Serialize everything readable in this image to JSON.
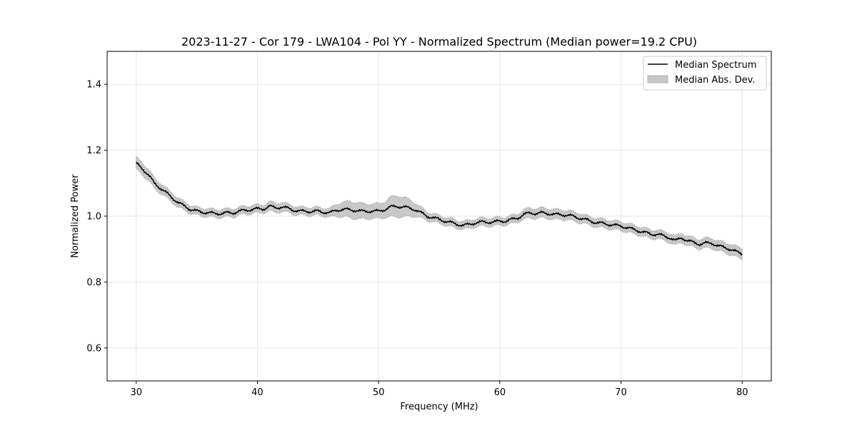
{
  "chart_data": {
    "type": "line",
    "title": "2023-11-27 - Cor 179 - LWA104 - Pol YY - Normalized Spectrum (Median power=19.2 CPU)",
    "xlabel": "Frequency (MHz)",
    "ylabel": "Normalized Power",
    "xlim": [
      27.6,
      82.4
    ],
    "ylim": [
      0.5,
      1.5
    ],
    "xticks": [
      30,
      40,
      50,
      60,
      70,
      80
    ],
    "yticks": [
      0.6,
      0.8,
      1.0,
      1.2,
      1.4
    ],
    "xtick_labels": [
      "30",
      "40",
      "50",
      "60",
      "70",
      "80"
    ],
    "ytick_labels": [
      "0.6",
      "0.8",
      "1.0",
      "1.2",
      "1.4"
    ],
    "grid": true,
    "legend_position": "top-right",
    "legend": [
      "Median Spectrum",
      "Median Abs. Dev."
    ],
    "series": [
      {
        "name": "Median Spectrum",
        "color": "#000000",
        "x": [
          30,
          30.5,
          31,
          31.5,
          32,
          32.5,
          33,
          33.5,
          34,
          34.5,
          35,
          35.5,
          36,
          36.5,
          37,
          37.5,
          38,
          38.5,
          39,
          39.5,
          40,
          40.5,
          41,
          41.5,
          42,
          42.5,
          43,
          43.5,
          44,
          44.5,
          45,
          45.5,
          46,
          46.5,
          47,
          47.5,
          48,
          48.5,
          49,
          49.5,
          50,
          50.5,
          51,
          51.5,
          52,
          52.5,
          53,
          53.5,
          54,
          54.5,
          55,
          55.5,
          56,
          56.5,
          57,
          57.5,
          58,
          58.5,
          59,
          59.5,
          60,
          60.5,
          61,
          61.5,
          62,
          62.5,
          63,
          63.5,
          64,
          64.5,
          65,
          65.5,
          66,
          66.5,
          67,
          67.5,
          68,
          68.5,
          69,
          69.5,
          70,
          70.5,
          71,
          71.5,
          72,
          72.5,
          73,
          73.5,
          74,
          74.5,
          75,
          75.5,
          76,
          76.5,
          77,
          77.5,
          78,
          78.5,
          79,
          79.5,
          80
        ],
        "values": [
          1.16,
          1.145,
          1.125,
          1.1,
          1.085,
          1.07,
          1.055,
          1.04,
          1.03,
          1.02,
          1.015,
          1.012,
          1.01,
          1.008,
          1.008,
          1.01,
          1.01,
          1.015,
          1.018,
          1.02,
          1.022,
          1.022,
          1.03,
          1.025,
          1.028,
          1.024,
          1.018,
          1.015,
          1.015,
          1.014,
          1.015,
          1.012,
          1.01,
          1.018,
          1.02,
          1.02,
          1.018,
          1.015,
          1.015,
          1.015,
          1.015,
          1.02,
          1.028,
          1.03,
          1.028,
          1.025,
          1.02,
          1.01,
          1.0,
          0.995,
          0.99,
          0.985,
          0.98,
          0.975,
          0.972,
          0.975,
          0.98,
          0.982,
          0.982,
          0.982,
          0.985,
          0.985,
          0.99,
          0.995,
          1.005,
          1.01,
          1.008,
          1.01,
          1.008,
          1.005,
          1.005,
          1.003,
          1.0,
          0.995,
          0.99,
          0.985,
          0.98,
          0.978,
          0.975,
          0.972,
          0.97,
          0.965,
          0.96,
          0.955,
          0.95,
          0.945,
          0.945,
          0.94,
          0.935,
          0.925,
          0.935,
          0.925,
          0.92,
          0.915,
          0.918,
          0.918,
          0.91,
          0.905,
          0.9,
          0.892,
          0.885
        ]
      },
      {
        "name": "Median Abs. Dev.",
        "color": "#c8c8c8",
        "x": [
          30,
          30.5,
          31,
          31.5,
          32,
          32.5,
          33,
          33.5,
          34,
          34.5,
          35,
          35.5,
          36,
          36.5,
          37,
          37.5,
          38,
          38.5,
          39,
          39.5,
          40,
          40.5,
          41,
          41.5,
          42,
          42.5,
          43,
          43.5,
          44,
          44.5,
          45,
          45.5,
          46,
          46.5,
          47,
          47.5,
          48,
          48.5,
          49,
          49.5,
          50,
          50.5,
          51,
          51.5,
          52,
          52.5,
          53,
          53.5,
          54,
          54.5,
          55,
          55.5,
          56,
          56.5,
          57,
          57.5,
          58,
          58.5,
          59,
          59.5,
          60,
          60.5,
          61,
          61.5,
          62,
          62.5,
          63,
          63.5,
          64,
          64.5,
          65,
          65.5,
          66,
          66.5,
          67,
          67.5,
          68,
          68.5,
          69,
          69.5,
          70,
          70.5,
          71,
          71.5,
          72,
          72.5,
          73,
          73.5,
          74,
          74.5,
          75,
          75.5,
          76,
          76.5,
          77,
          77.5,
          78,
          78.5,
          79,
          79.5,
          80
        ],
        "deviation": [
          0.018,
          0.018,
          0.017,
          0.016,
          0.015,
          0.014,
          0.014,
          0.013,
          0.013,
          0.012,
          0.012,
          0.012,
          0.012,
          0.012,
          0.012,
          0.012,
          0.012,
          0.012,
          0.012,
          0.012,
          0.012,
          0.012,
          0.014,
          0.014,
          0.014,
          0.013,
          0.013,
          0.012,
          0.012,
          0.012,
          0.012,
          0.012,
          0.013,
          0.018,
          0.022,
          0.024,
          0.025,
          0.024,
          0.022,
          0.022,
          0.022,
          0.024,
          0.03,
          0.032,
          0.03,
          0.026,
          0.02,
          0.016,
          0.013,
          0.012,
          0.012,
          0.012,
          0.012,
          0.012,
          0.012,
          0.012,
          0.012,
          0.012,
          0.012,
          0.012,
          0.012,
          0.012,
          0.012,
          0.012,
          0.014,
          0.015,
          0.015,
          0.015,
          0.015,
          0.015,
          0.015,
          0.014,
          0.014,
          0.014,
          0.013,
          0.013,
          0.013,
          0.013,
          0.013,
          0.013,
          0.013,
          0.013,
          0.013,
          0.013,
          0.013,
          0.013,
          0.013,
          0.013,
          0.014,
          0.014,
          0.014,
          0.014,
          0.014,
          0.014,
          0.015,
          0.015,
          0.015,
          0.015,
          0.016,
          0.016,
          0.016
        ]
      }
    ]
  },
  "colors": {
    "line": "#000000",
    "band_fill": "#c8c8c8",
    "band_edge": "#a8a8a8",
    "grid": "#e6e6e6",
    "frame": "#000000",
    "legend_edge": "#cccccc"
  }
}
